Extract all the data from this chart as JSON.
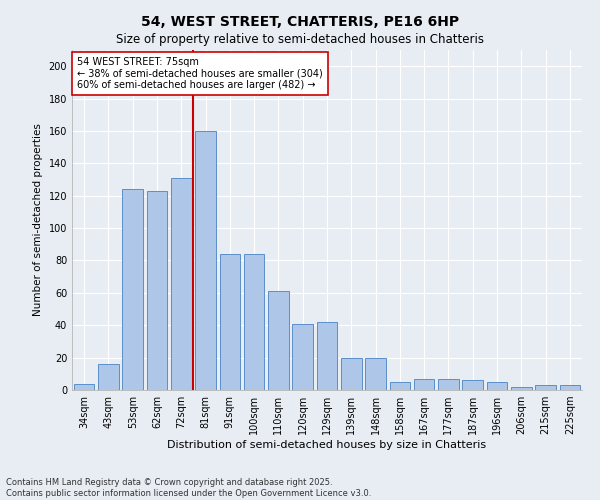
{
  "title": "54, WEST STREET, CHATTERIS, PE16 6HP",
  "subtitle": "Size of property relative to semi-detached houses in Chatteris",
  "xlabel": "Distribution of semi-detached houses by size in Chatteris",
  "ylabel": "Number of semi-detached properties",
  "categories": [
    "34sqm",
    "43sqm",
    "53sqm",
    "62sqm",
    "72sqm",
    "81sqm",
    "91sqm",
    "100sqm",
    "110sqm",
    "120sqm",
    "129sqm",
    "139sqm",
    "148sqm",
    "158sqm",
    "167sqm",
    "177sqm",
    "187sqm",
    "196sqm",
    "206sqm",
    "215sqm",
    "225sqm"
  ],
  "values": [
    4,
    16,
    124,
    123,
    131,
    160,
    84,
    84,
    61,
    41,
    42,
    20,
    20,
    5,
    7,
    7,
    6,
    5,
    2,
    3,
    3
  ],
  "bar_color": "#aec6e8",
  "bar_edge_color": "#5b8fc9",
  "annotation_title": "54 WEST STREET: 75sqm",
  "annotation_line2": "← 38% of semi-detached houses are smaller (304)",
  "annotation_line3": "60% of semi-detached houses are larger (482) →",
  "vline_color": "#cc0000",
  "vline_x": 4.5,
  "ylim": [
    0,
    210
  ],
  "yticks": [
    0,
    20,
    40,
    60,
    80,
    100,
    120,
    140,
    160,
    180,
    200
  ],
  "background_color": "#e8edf4",
  "footer": "Contains HM Land Registry data © Crown copyright and database right 2025.\nContains public sector information licensed under the Open Government Licence v3.0.",
  "title_fontsize": 10,
  "subtitle_fontsize": 8.5,
  "xlabel_fontsize": 8,
  "ylabel_fontsize": 7.5,
  "tick_fontsize": 7,
  "footer_fontsize": 6,
  "annot_fontsize": 7
}
